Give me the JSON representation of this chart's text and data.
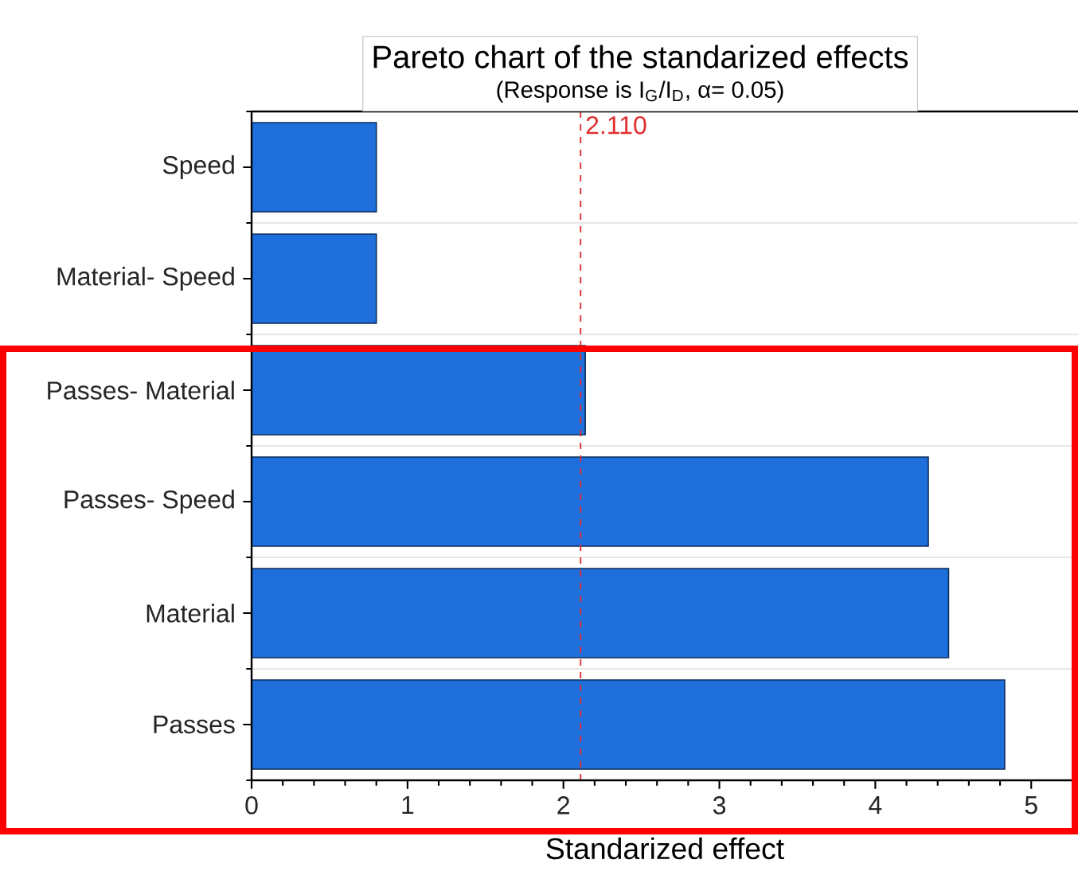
{
  "chart_data": {
    "type": "bar",
    "orientation": "horizontal",
    "title": "Pareto chart of the standarized effects",
    "subtitle": "(Response is I$_{G}$/I$_{D}$, α= 0.05)",
    "xlabel": "Standarized effect",
    "categories": [
      "Speed",
      "Material- Speed",
      "Passes- Material",
      "Passes- Speed",
      "Material",
      "Passes"
    ],
    "values": [
      0.8,
      0.8,
      2.14,
      4.34,
      4.47,
      4.83
    ],
    "color": "#1e6fdc",
    "xlim": [
      0,
      5.3
    ],
    "xticks": [
      0,
      1,
      2,
      3,
      4,
      5
    ],
    "grid": "y",
    "ref_lines": [
      {
        "axis": "x",
        "value": 2.11,
        "label": "2.110",
        "color": "#e03030",
        "line_style": "dashed"
      }
    ]
  }
}
